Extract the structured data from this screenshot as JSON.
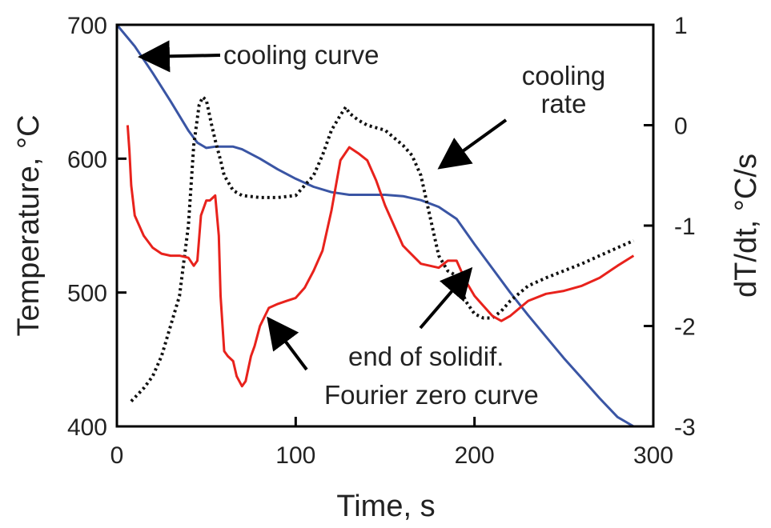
{
  "chart_data": {
    "type": "line",
    "title": "",
    "xlabel": "Time, s",
    "ylabel_left": "Temperature, °C",
    "ylabel_right": "dT/dt, °C/s",
    "xlim": [
      0,
      300
    ],
    "ylim_left": [
      400,
      700
    ],
    "ylim_right": [
      -3,
      1
    ],
    "x_ticks": [
      "0",
      "100",
      "200",
      "300"
    ],
    "y_left_ticks": [
      "400",
      "500",
      "600",
      "700"
    ],
    "y_right_ticks": [
      "-3",
      "-2",
      "-1",
      "0",
      "1"
    ],
    "grid": false,
    "series": [
      {
        "id": "cooling_curve",
        "axis": "left",
        "color": "#3a55a4",
        "style": "solid",
        "x": [
          0,
          10,
          20,
          30,
          40,
          45,
          50,
          55,
          60,
          65,
          70,
          80,
          90,
          100,
          110,
          120,
          130,
          140,
          150,
          160,
          170,
          180,
          190,
          200,
          210,
          220,
          230,
          240,
          250,
          260,
          270,
          280,
          289
        ],
        "y": [
          700,
          684,
          664,
          643,
          621,
          612,
          608,
          609,
          609,
          609,
          607,
          600,
          592,
          585,
          579,
          575,
          573,
          573,
          573,
          572,
          569,
          564,
          555,
          536,
          518,
          500,
          483,
          467,
          451,
          436,
          421,
          407,
          400
        ]
      },
      {
        "id": "cooling_rate",
        "axis": "right",
        "color": "#111111",
        "style": "dotted",
        "x": [
          8,
          15,
          20,
          25,
          30,
          35,
          40,
          43,
          46,
          48,
          50,
          53,
          55,
          58,
          60,
          65,
          70,
          80,
          90,
          100,
          105,
          110,
          115,
          120,
          125,
          128,
          130,
          135,
          140,
          150,
          160,
          165,
          170,
          175,
          180,
          185,
          190,
          195,
          200,
          205,
          210,
          215,
          220,
          230,
          240,
          250,
          260,
          270,
          280,
          289
        ],
        "y": [
          -2.75,
          -2.62,
          -2.5,
          -2.3,
          -2.0,
          -1.7,
          -1.0,
          -0.2,
          0.2,
          0.28,
          0.25,
          0.0,
          -0.15,
          -0.35,
          -0.5,
          -0.65,
          -0.7,
          -0.72,
          -0.72,
          -0.7,
          -0.6,
          -0.5,
          -0.3,
          -0.05,
          0.1,
          0.18,
          0.12,
          0.05,
          0.0,
          -0.05,
          -0.2,
          -0.3,
          -0.5,
          -0.9,
          -1.3,
          -1.45,
          -1.5,
          -1.75,
          -1.88,
          -1.92,
          -1.92,
          -1.85,
          -1.75,
          -1.6,
          -1.52,
          -1.45,
          -1.38,
          -1.3,
          -1.22,
          -1.15
        ]
      },
      {
        "id": "fourier_zero_curve",
        "axis": "right",
        "color": "#e8221c",
        "style": "solid",
        "x": [
          6,
          7,
          8,
          10,
          15,
          20,
          25,
          30,
          35,
          40,
          43,
          45,
          47,
          50,
          52,
          55,
          57,
          58,
          60,
          62,
          65,
          67,
          70,
          72,
          75,
          77,
          80,
          85,
          90,
          95,
          100,
          105,
          110,
          115,
          120,
          125,
          130,
          135,
          140,
          145,
          150,
          160,
          170,
          180,
          185,
          190,
          195,
          200,
          205,
          210,
          215,
          220,
          230,
          240,
          250,
          260,
          270,
          280,
          289
        ],
        "y": [
          0.0,
          -0.25,
          -0.6,
          -0.9,
          -1.1,
          -1.22,
          -1.28,
          -1.3,
          -1.3,
          -1.32,
          -1.4,
          -1.35,
          -0.9,
          -0.75,
          -0.75,
          -0.7,
          -1.1,
          -1.7,
          -2.25,
          -2.3,
          -2.35,
          -2.5,
          -2.6,
          -2.55,
          -2.3,
          -2.2,
          -2.0,
          -1.82,
          -1.78,
          -1.75,
          -1.72,
          -1.62,
          -1.45,
          -1.25,
          -0.85,
          -0.35,
          -0.22,
          -0.28,
          -0.35,
          -0.55,
          -0.8,
          -1.2,
          -1.38,
          -1.42,
          -1.35,
          -1.35,
          -1.55,
          -1.7,
          -1.8,
          -1.9,
          -1.95,
          -1.9,
          -1.75,
          -1.68,
          -1.65,
          -1.6,
          -1.52,
          -1.4,
          -1.3
        ]
      }
    ],
    "annotations": [
      {
        "id": "cooling_curve",
        "lines": [
          "cooling curve"
        ]
      },
      {
        "id": "cooling_rate",
        "lines": [
          "cooling",
          "rate"
        ]
      },
      {
        "id": "end_solidif",
        "lines": [
          "end of solidif."
        ]
      },
      {
        "id": "fourier",
        "lines": [
          "Fourier zero curve"
        ]
      }
    ]
  }
}
